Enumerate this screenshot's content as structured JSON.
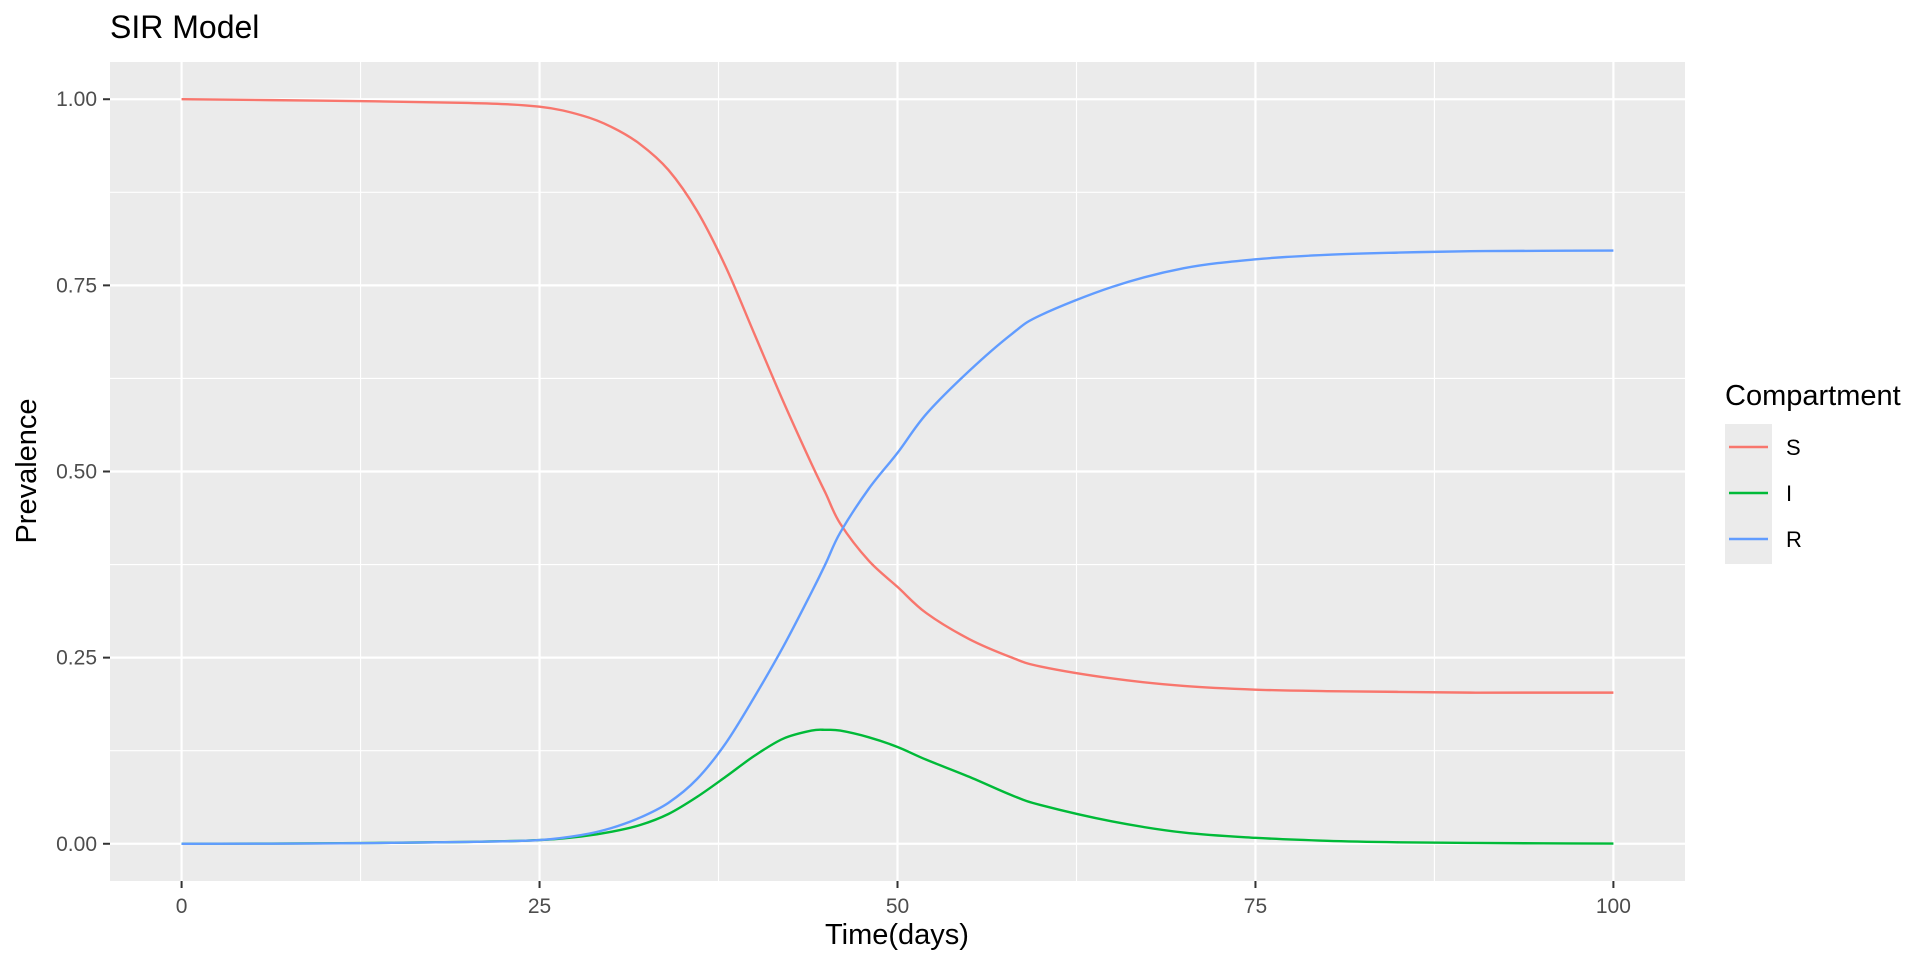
{
  "chart_data": {
    "type": "line",
    "title": "SIR Model",
    "xlabel": "Time(days)",
    "ylabel": "Prevalence",
    "xlim": [
      -5,
      105
    ],
    "ylim": [
      -0.05,
      1.05
    ],
    "x_ticks": [
      0,
      25,
      50,
      75,
      100
    ],
    "x_tick_labels": [
      "0",
      "25",
      "50",
      "75",
      "100"
    ],
    "y_ticks": [
      0,
      0.25,
      0.5,
      0.75,
      1.0
    ],
    "y_tick_labels": [
      "0.00",
      "0.25",
      "0.50",
      "0.75",
      "1.00"
    ],
    "grid": true,
    "legend": {
      "title": "Compartment",
      "position": "right"
    },
    "x": [
      0,
      10,
      20,
      25,
      28,
      30,
      32,
      34,
      36,
      38,
      40,
      42,
      44,
      45,
      46,
      48,
      50,
      52,
      55,
      58,
      60,
      65,
      70,
      75,
      80,
      85,
      90,
      95,
      100
    ],
    "series": [
      {
        "name": "S",
        "color": "#F8766D",
        "values": [
          1.0,
          0.998,
          0.995,
          0.99,
          0.978,
          0.963,
          0.94,
          0.905,
          0.85,
          0.775,
          0.685,
          0.595,
          0.51,
          0.47,
          0.43,
          0.38,
          0.345,
          0.31,
          0.275,
          0.25,
          0.238,
          0.222,
          0.212,
          0.207,
          0.205,
          0.204,
          0.203,
          0.203,
          0.203
        ]
      },
      {
        "name": "I",
        "color": "#00BA38",
        "values": [
          0.0,
          0.0006,
          0.0025,
          0.005,
          0.01,
          0.016,
          0.025,
          0.04,
          0.063,
          0.09,
          0.118,
          0.141,
          0.152,
          0.153,
          0.152,
          0.143,
          0.13,
          0.113,
          0.09,
          0.065,
          0.052,
          0.03,
          0.015,
          0.008,
          0.004,
          0.002,
          0.0011,
          0.0006,
          0.0003
        ]
      },
      {
        "name": "R",
        "color": "#619CFF",
        "values": [
          0.0,
          0.0004,
          0.0025,
          0.005,
          0.012,
          0.021,
          0.035,
          0.055,
          0.087,
          0.135,
          0.197,
          0.264,
          0.338,
          0.377,
          0.418,
          0.477,
          0.525,
          0.577,
          0.635,
          0.685,
          0.71,
          0.748,
          0.773,
          0.785,
          0.791,
          0.794,
          0.7959,
          0.7964,
          0.7967
        ]
      }
    ]
  }
}
